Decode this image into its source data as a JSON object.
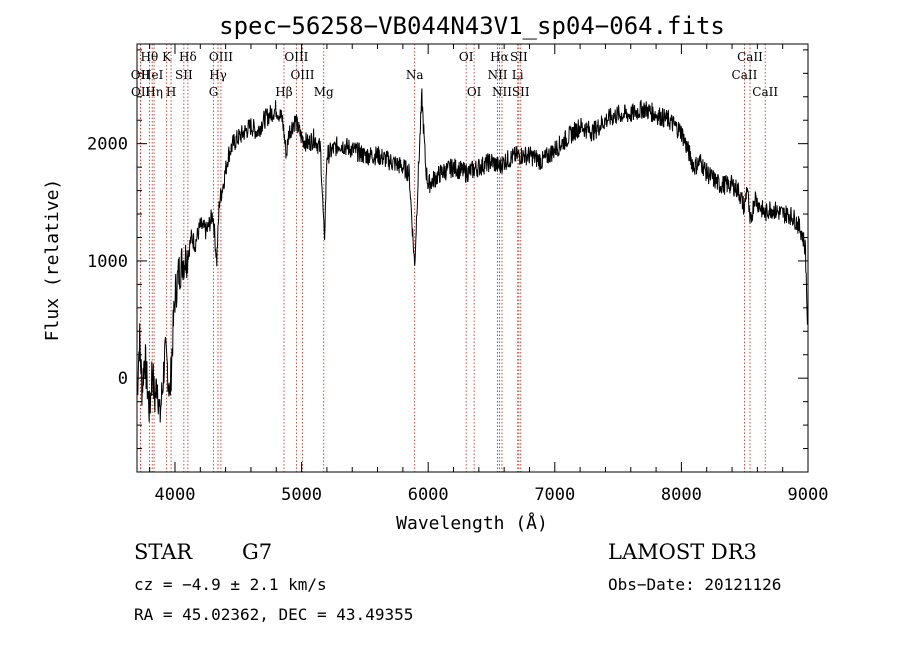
{
  "chart_data": {
    "type": "line",
    "title": "spec−56258−VB044N43V1_sp04−064.fits",
    "xlabel": "Wavelength (Å)",
    "ylabel": "Flux (relative)",
    "xlim": [
      3700,
      9000
    ],
    "ylim": [
      -800,
      2850
    ],
    "x_ticks": [
      4000,
      5000,
      6000,
      7000,
      8000,
      9000
    ],
    "y_ticks": [
      0,
      1000,
      2000
    ],
    "grid": false,
    "spectrum_anchors": {
      "x": [
        3700,
        3720,
        3740,
        3760,
        3780,
        3800,
        3820,
        3840,
        3860,
        3880,
        3900,
        3920,
        3940,
        3960,
        3980,
        4000,
        4030,
        4060,
        4100,
        4130,
        4160,
        4200,
        4250,
        4300,
        4330,
        4350,
        4380,
        4420,
        4460,
        4500,
        4550,
        4600,
        4650,
        4700,
        4750,
        4800,
        4850,
        4880,
        4900,
        4950,
        5000,
        5050,
        5100,
        5150,
        5180,
        5200,
        5250,
        5300,
        5400,
        5500,
        5600,
        5700,
        5800,
        5850,
        5893,
        5920,
        5950,
        5980,
        6000,
        6050,
        6100,
        6200,
        6300,
        6400,
        6500,
        6563,
        6600,
        6700,
        6800,
        6900,
        7000,
        7100,
        7200,
        7300,
        7400,
        7500,
        7600,
        7700,
        7800,
        7900,
        8000,
        8050,
        8100,
        8150,
        8200,
        8300,
        8400,
        8450,
        8498,
        8520,
        8542,
        8580,
        8600,
        8662,
        8700,
        8800,
        8850,
        8900,
        8950,
        8980,
        9000
      ],
      "y": [
        -150,
        350,
        -100,
        200,
        -50,
        -300,
        100,
        -200,
        0,
        -350,
        -100,
        200,
        100,
        -150,
        300,
        700,
        900,
        1000,
        1050,
        1200,
        1150,
        1300,
        1250,
        1400,
        1000,
        1500,
        1650,
        1900,
        2000,
        2050,
        2100,
        2150,
        2100,
        2200,
        2250,
        2300,
        2200,
        1900,
        2100,
        2200,
        2050,
        2000,
        2050,
        1950,
        1150,
        1900,
        1950,
        2000,
        1950,
        1900,
        1900,
        1850,
        1800,
        1750,
        950,
        1700,
        2400,
        1800,
        1650,
        1700,
        1750,
        1800,
        1750,
        1800,
        1850,
        1800,
        1850,
        1900,
        1900,
        1850,
        1950,
        2050,
        2150,
        2100,
        2200,
        2250,
        2250,
        2300,
        2250,
        2200,
        2100,
        1950,
        1800,
        1850,
        1750,
        1650,
        1650,
        1600,
        1450,
        1650,
        1300,
        1550,
        1500,
        1400,
        1450,
        1400,
        1400,
        1350,
        1250,
        1100,
        300
      ],
      "noise": 85
    },
    "spectral_lines": [
      {
        "label": "Hθ",
        "wave": 3798,
        "row": 0
      },
      {
        "label": "OII",
        "wave": 3727,
        "row": 1
      },
      {
        "label": "OII",
        "wave": 3729,
        "row": 2
      },
      {
        "label": "HeI",
        "wave": 3820,
        "row": 1
      },
      {
        "label": "Hη",
        "wave": 3835,
        "row": 2
      },
      {
        "label": "K",
        "wave": 3934,
        "row": 0
      },
      {
        "label": "H",
        "wave": 3969,
        "row": 2
      },
      {
        "label": "SII",
        "wave": 4070,
        "row": 1
      },
      {
        "label": "Hδ",
        "wave": 4102,
        "row": 0
      },
      {
        "label": "OIII",
        "wave": 4363,
        "row": 0
      },
      {
        "label": "Hγ",
        "wave": 4340,
        "row": 1
      },
      {
        "label": "G",
        "wave": 4305,
        "row": 2
      },
      {
        "label": "OIII",
        "wave": 4959,
        "row": 0
      },
      {
        "label": "OIII",
        "wave": 5007,
        "row": 1
      },
      {
        "label": "Hβ",
        "wave": 4861,
        "row": 2
      },
      {
        "label": "Mg",
        "wave": 5175,
        "row": 2
      },
      {
        "label": "Na",
        "wave": 5893,
        "row": 1
      },
      {
        "label": "OI",
        "wave": 6300,
        "row": 0
      },
      {
        "label": "OI",
        "wave": 6363,
        "row": 2
      },
      {
        "label": "Hα",
        "wave": 6563,
        "row": 0
      },
      {
        "label": "SII",
        "wave": 6716,
        "row": 0
      },
      {
        "label": "NII",
        "wave": 6548,
        "row": 1
      },
      {
        "label": "Li",
        "wave": 6707,
        "row": 1
      },
      {
        "label": "NII",
        "wave": 6583,
        "row": 2
      },
      {
        "label": "SII",
        "wave": 6731,
        "row": 2
      },
      {
        "label": "CaII",
        "wave": 8542,
        "row": 0
      },
      {
        "label": "CaII",
        "wave": 8498,
        "row": 1
      },
      {
        "label": "CaII",
        "wave": 8662,
        "row": 2
      }
    ]
  },
  "info": {
    "object_class": "STAR",
    "subclass": "G7",
    "survey": "LAMOST DR3",
    "redshift": "cz = −4.9 ± 2.1 km/s",
    "obs_date": "Obs−Date: 20121126",
    "coords": "RA =  45.02362, DEC =  43.49355"
  },
  "colors": {
    "spectrum": "#000000",
    "line_marker": "#c0392b",
    "axes": "#000000"
  }
}
